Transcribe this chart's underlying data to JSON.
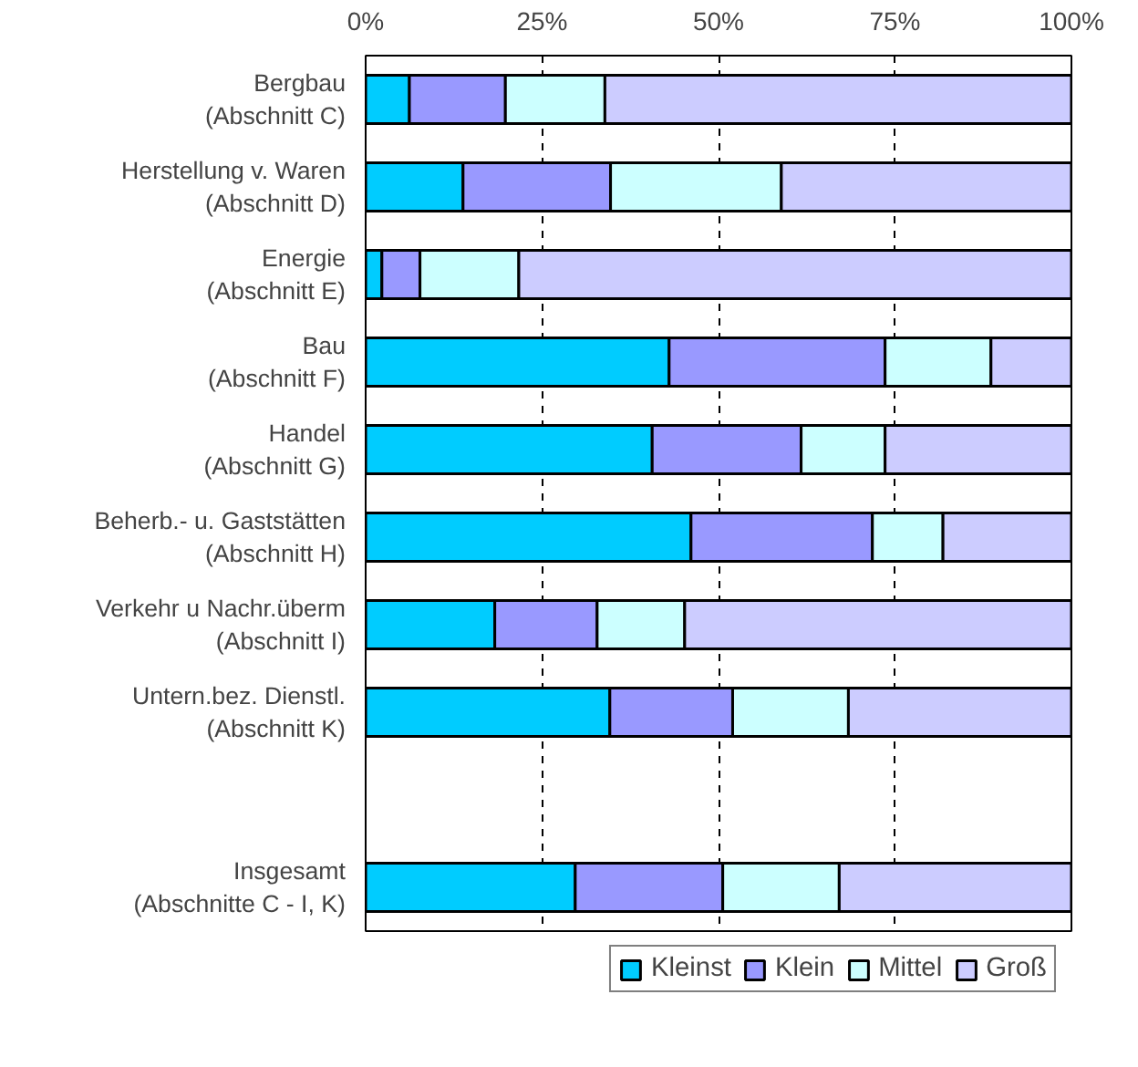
{
  "chart_data": {
    "type": "bar",
    "orientation": "horizontal",
    "stacked": true,
    "categories": [
      "Bergbau\n(Abschnitt C)",
      "Herstellung v. Waren\n(Abschnitt D)",
      "Energie\n(Abschnitt E)",
      "Bau\n(Abschnitt F)",
      "Handel\n(Abschnitt G)",
      "Beherb.- u. Gaststätten\n(Abschnitt H)",
      "Verkehr u Nachr.überm\n(Abschnitt I)",
      "Untern.bez. Dienstl.\n(Abschnitt K)",
      null,
      "Insgesamt\n(Abschnitte C - I, K)"
    ],
    "series": [
      {
        "name": "Kleinst",
        "color": "#00ccff",
        "values": [
          6.2,
          13.8,
          2.3,
          43.0,
          40.6,
          46.1,
          18.3,
          34.6,
          null,
          29.7
        ]
      },
      {
        "name": "Klein",
        "color": "#9999ff",
        "values": [
          13.6,
          20.9,
          5.4,
          30.6,
          21.1,
          25.7,
          14.5,
          17.4,
          null,
          20.9
        ]
      },
      {
        "name": "Mittel",
        "color": "#ccffff",
        "values": [
          14.1,
          24.2,
          14.0,
          15.0,
          11.9,
          10.0,
          12.4,
          16.4,
          null,
          16.5
        ]
      },
      {
        "name": "Groß",
        "color": "#ccccff",
        "values": [
          66.1,
          41.1,
          78.3,
          11.4,
          26.4,
          18.2,
          54.8,
          31.6,
          null,
          32.9
        ]
      }
    ],
    "xlim": [
      0,
      100
    ],
    "xticks": [
      {
        "value": 0,
        "label": "0%"
      },
      {
        "value": 25,
        "label": "25%"
      },
      {
        "value": 50,
        "label": "50%"
      },
      {
        "value": 75,
        "label": "75%"
      },
      {
        "value": 100,
        "label": "100%"
      }
    ],
    "grid": "x",
    "legend": "bottom"
  }
}
